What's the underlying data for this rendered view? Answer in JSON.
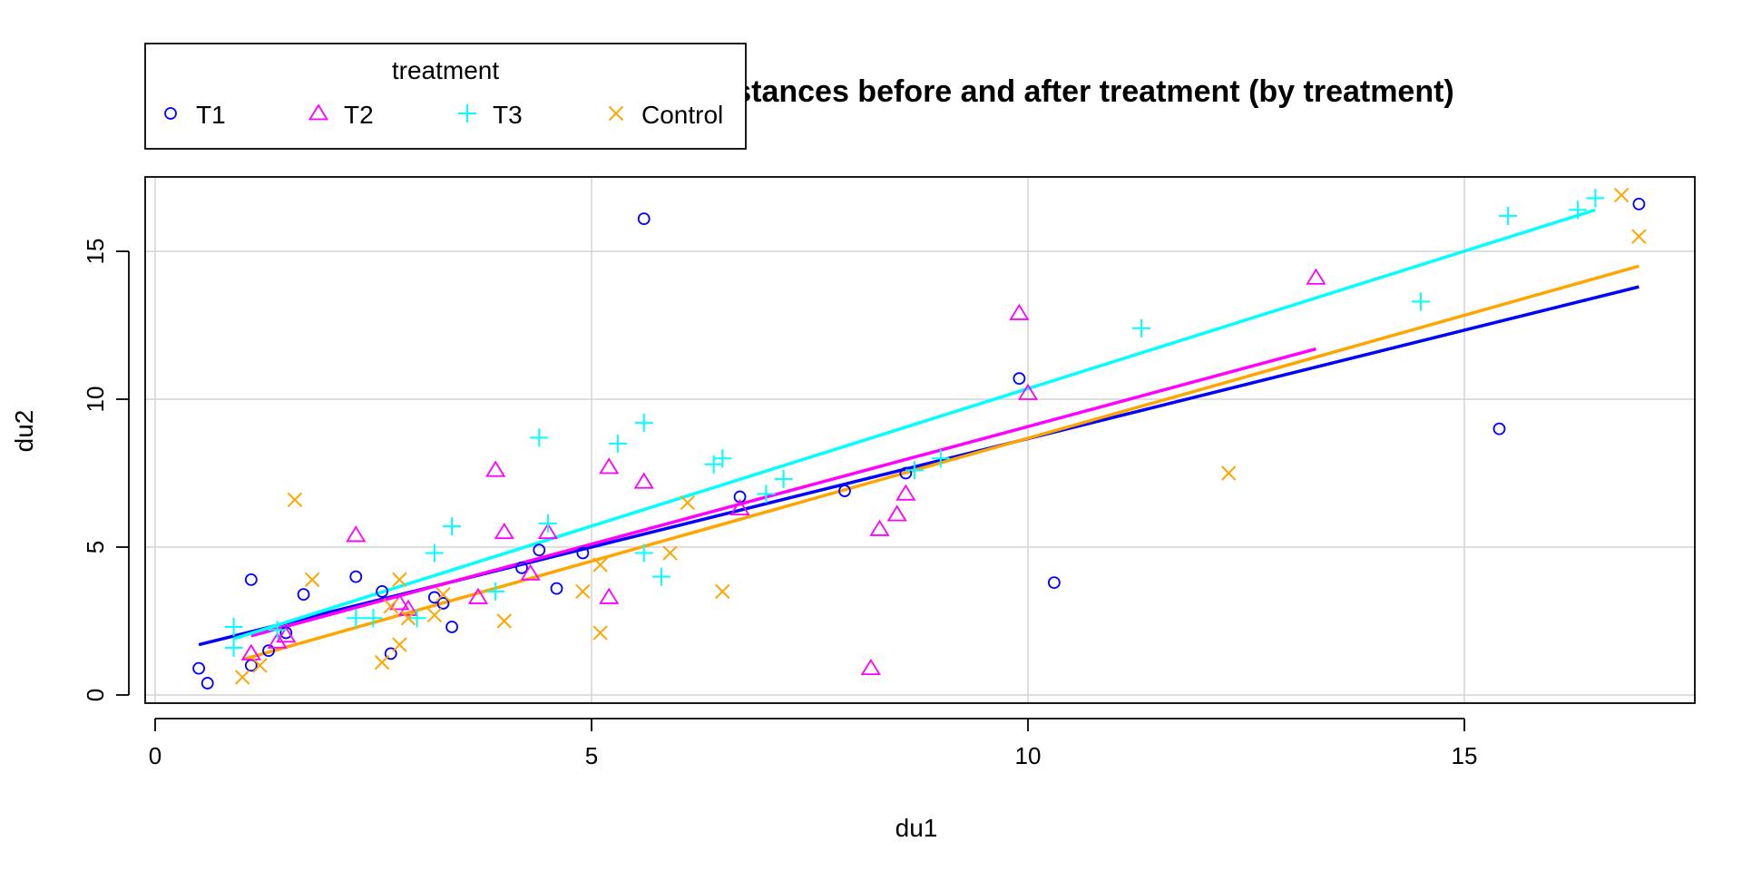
{
  "chart_data": {
    "type": "scatter",
    "title": "Distances before and after treatment (by treatment)",
    "xlabel": "du1",
    "ylabel": "du2",
    "xlim": [
      0,
      17
    ],
    "ylim": [
      0,
      17
    ],
    "xticks": [
      0,
      5,
      10,
      15
    ],
    "yticks": [
      0,
      5,
      10,
      15
    ],
    "grid": true,
    "legend": {
      "title": "treatment",
      "placement": "top-left",
      "entries": [
        "T1",
        "T2",
        "T3",
        "Control"
      ]
    },
    "series": [
      {
        "name": "T1",
        "color": "#0000ff",
        "marker": "circle",
        "points": [
          [
            0.5,
            0.9
          ],
          [
            0.6,
            0.4
          ],
          [
            1.1,
            3.9
          ],
          [
            1.1,
            1.0
          ],
          [
            1.3,
            1.5
          ],
          [
            1.5,
            2.1
          ],
          [
            1.7,
            3.4
          ],
          [
            2.3,
            4.0
          ],
          [
            2.6,
            3.5
          ],
          [
            2.7,
            1.4
          ],
          [
            3.2,
            3.3
          ],
          [
            3.3,
            3.1
          ],
          [
            3.4,
            2.3
          ],
          [
            4.2,
            4.3
          ],
          [
            4.4,
            4.9
          ],
          [
            4.6,
            3.6
          ],
          [
            4.9,
            4.8
          ],
          [
            5.6,
            16.1
          ],
          [
            6.7,
            6.7
          ],
          [
            7.9,
            6.9
          ],
          [
            8.6,
            7.5
          ],
          [
            9.9,
            10.7
          ],
          [
            10.3,
            3.8
          ],
          [
            15.4,
            9.0
          ],
          [
            17.0,
            16.6
          ]
        ],
        "fit": [
          [
            0.5,
            1.7
          ],
          [
            17.0,
            13.8
          ]
        ]
      },
      {
        "name": "T2",
        "color": "#ff00ff",
        "marker": "triangle",
        "points": [
          [
            1.1,
            1.4
          ],
          [
            1.4,
            1.8
          ],
          [
            1.5,
            2.0
          ],
          [
            2.3,
            5.4
          ],
          [
            2.8,
            3.1
          ],
          [
            2.9,
            2.9
          ],
          [
            3.7,
            3.3
          ],
          [
            3.9,
            7.6
          ],
          [
            4.0,
            5.5
          ],
          [
            4.3,
            4.1
          ],
          [
            4.5,
            5.5
          ],
          [
            5.2,
            7.7
          ],
          [
            5.2,
            3.3
          ],
          [
            5.6,
            7.2
          ],
          [
            6.7,
            6.3
          ],
          [
            8.2,
            0.9
          ],
          [
            8.3,
            5.6
          ],
          [
            8.5,
            6.1
          ],
          [
            8.6,
            6.8
          ],
          [
            9.9,
            12.9
          ],
          [
            10.0,
            10.2
          ],
          [
            13.3,
            14.1
          ]
        ],
        "fit": [
          [
            1.1,
            2.0
          ],
          [
            13.3,
            11.7
          ]
        ]
      },
      {
        "name": "T3",
        "color": "#00ffff",
        "marker": "plus",
        "points": [
          [
            0.9,
            2.3
          ],
          [
            0.9,
            1.6
          ],
          [
            1.4,
            2.2
          ],
          [
            2.3,
            2.6
          ],
          [
            2.5,
            2.6
          ],
          [
            3.0,
            2.6
          ],
          [
            3.2,
            4.8
          ],
          [
            3.4,
            5.7
          ],
          [
            3.9,
            3.5
          ],
          [
            4.4,
            8.7
          ],
          [
            4.5,
            5.8
          ],
          [
            5.3,
            8.5
          ],
          [
            5.6,
            9.2
          ],
          [
            5.6,
            4.8
          ],
          [
            5.8,
            4.0
          ],
          [
            6.4,
            7.8
          ],
          [
            6.5,
            8.0
          ],
          [
            7.0,
            6.8
          ],
          [
            7.2,
            7.3
          ],
          [
            8.7,
            7.6
          ],
          [
            9.0,
            8.0
          ],
          [
            11.3,
            12.4
          ],
          [
            14.5,
            13.3
          ],
          [
            15.5,
            16.2
          ],
          [
            16.3,
            16.4
          ],
          [
            16.5,
            16.8
          ]
        ],
        "fit": [
          [
            0.9,
            1.9
          ],
          [
            16.5,
            16.4
          ]
        ]
      },
      {
        "name": "Control",
        "color": "#ffa500",
        "marker": "x",
        "points": [
          [
            1.0,
            0.6
          ],
          [
            1.2,
            1.0
          ],
          [
            1.6,
            6.6
          ],
          [
            1.8,
            3.9
          ],
          [
            2.6,
            1.1
          ],
          [
            2.7,
            3.0
          ],
          [
            2.8,
            3.9
          ],
          [
            2.8,
            1.7
          ],
          [
            2.9,
            2.6
          ],
          [
            3.2,
            2.7
          ],
          [
            3.3,
            3.4
          ],
          [
            4.0,
            2.5
          ],
          [
            4.9,
            3.5
          ],
          [
            5.1,
            2.1
          ],
          [
            5.1,
            4.4
          ],
          [
            5.9,
            4.8
          ],
          [
            6.1,
            6.5
          ],
          [
            6.5,
            3.5
          ],
          [
            12.3,
            7.5
          ],
          [
            16.8,
            16.9
          ],
          [
            17.0,
            15.5
          ]
        ],
        "fit": [
          [
            1.0,
            1.2
          ],
          [
            17.0,
            14.5
          ]
        ]
      }
    ]
  }
}
